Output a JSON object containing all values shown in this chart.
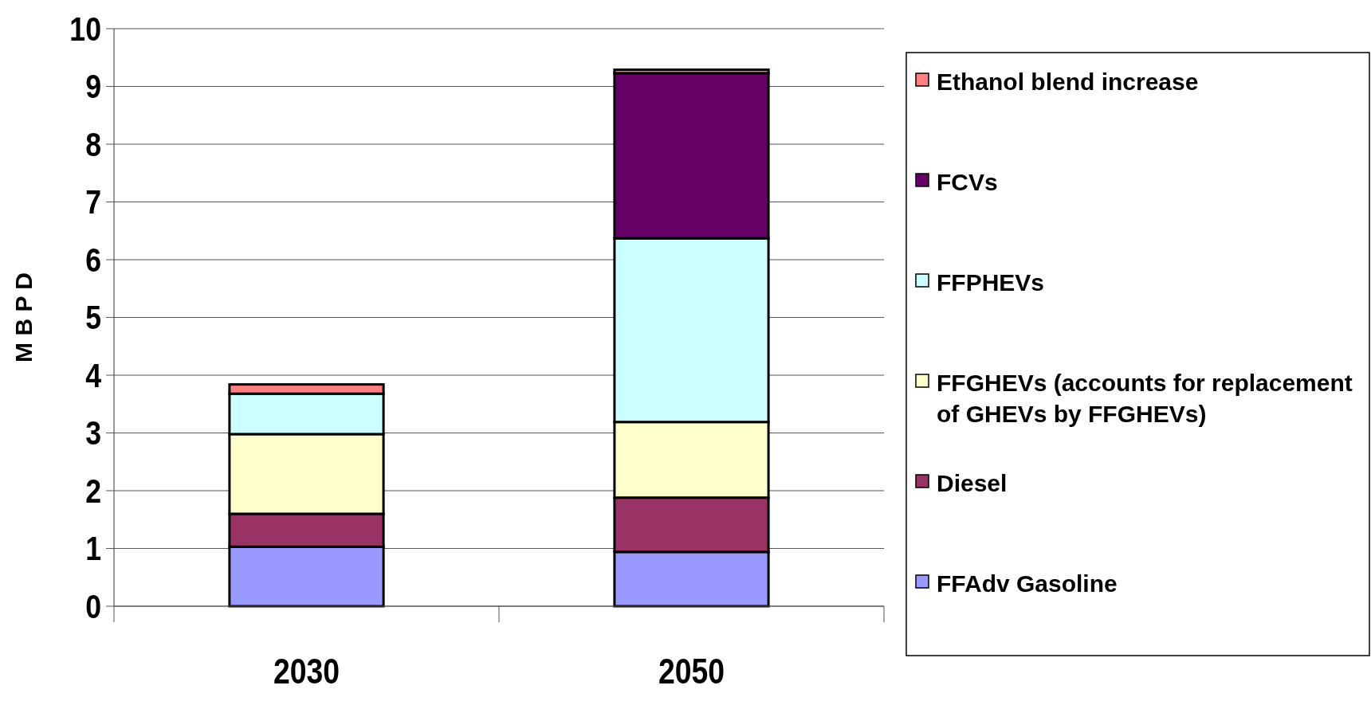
{
  "chart_data": {
    "type": "bar",
    "stacked": true,
    "ylabel": "M B P D",
    "categories": [
      "2030",
      "2050"
    ],
    "ylim": [
      0,
      10
    ],
    "yticks": [
      0,
      1,
      2,
      3,
      4,
      5,
      6,
      7,
      8,
      9,
      10
    ],
    "grid": "y",
    "legend": "right",
    "series": [
      {
        "name": "FFAdv Gasoline",
        "color": "#9999ff",
        "values": [
          1.03,
          0.94
        ]
      },
      {
        "name": "Diesel",
        "color": "#993366",
        "values": [
          0.57,
          0.94
        ]
      },
      {
        "name": "FFGHEVs (accounts for replacement of GHEVs by FFGHEVs)",
        "color": "#ffffcc",
        "values": [
          1.38,
          1.31
        ]
      },
      {
        "name": "FFPHEVs",
        "color": "#ccffff",
        "values": [
          0.7,
          3.18
        ]
      },
      {
        "name": "FCVs",
        "color": "#660066",
        "values": [
          0,
          2.86
        ]
      },
      {
        "name": "Ethanol blend increase",
        "color": "#ff8080",
        "values": [
          0.16,
          0.06
        ]
      }
    ]
  }
}
